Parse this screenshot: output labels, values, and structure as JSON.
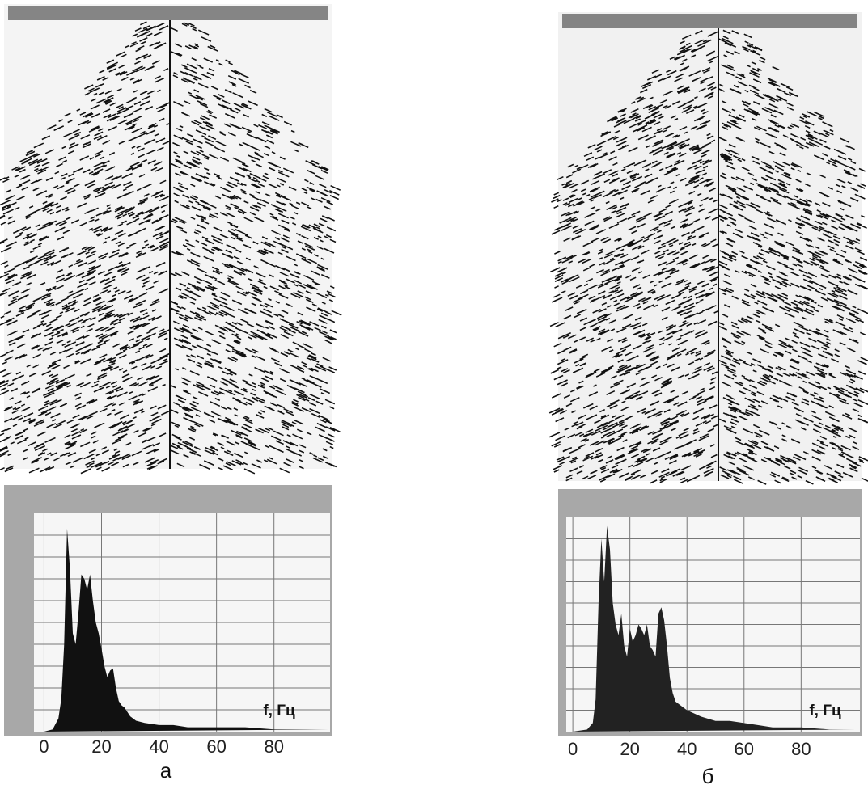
{
  "chart_data": [
    {
      "type": "area",
      "caption": "а",
      "annotation": "f, Гц",
      "color": "#111111",
      "x": [
        0,
        3,
        5,
        6,
        7,
        8,
        9,
        10,
        11,
        12,
        13,
        14,
        15,
        16,
        17,
        18,
        19,
        20,
        21,
        22,
        23,
        24,
        25,
        26,
        27,
        28,
        30,
        32,
        35,
        40,
        45,
        50,
        60,
        70,
        80,
        90,
        99
      ],
      "values": [
        0,
        1,
        6,
        15,
        40,
        93,
        75,
        45,
        40,
        55,
        72,
        70,
        65,
        72,
        60,
        50,
        45,
        38,
        30,
        25,
        28,
        29,
        20,
        14,
        12,
        11,
        7,
        5,
        4,
        3,
        3,
        2,
        2,
        2,
        1,
        1,
        1
      ],
      "xlim": [
        -3.5,
        99.5
      ],
      "xticks": [
        0,
        20,
        40,
        60,
        80
      ],
      "ylim": [
        0,
        100
      ],
      "grid": true
    },
    {
      "type": "area",
      "caption": "б",
      "annotation": "f, Гц",
      "color": "#222222",
      "x": [
        0,
        5,
        7,
        8,
        9,
        10,
        11,
        12,
        13,
        14,
        15,
        16,
        17,
        18,
        19,
        20,
        21,
        22,
        23,
        24,
        25,
        26,
        27,
        28,
        29,
        30,
        31,
        32,
        33,
        34,
        35,
        36,
        38,
        40,
        45,
        50,
        55,
        60,
        65,
        70,
        80,
        90,
        99
      ],
      "values": [
        0,
        1,
        4,
        15,
        60,
        90,
        70,
        96,
        85,
        60,
        50,
        45,
        55,
        40,
        35,
        48,
        42,
        45,
        50,
        48,
        45,
        50,
        40,
        38,
        35,
        55,
        58,
        52,
        40,
        25,
        18,
        14,
        12,
        10,
        7,
        5,
        5,
        4,
        3,
        2,
        2,
        1,
        1
      ],
      "xlim": [
        -2.3,
        100.6
      ],
      "xticks": [
        0,
        20,
        40,
        60,
        80
      ],
      "ylim": [
        0,
        100
      ],
      "grid": true
    }
  ]
}
